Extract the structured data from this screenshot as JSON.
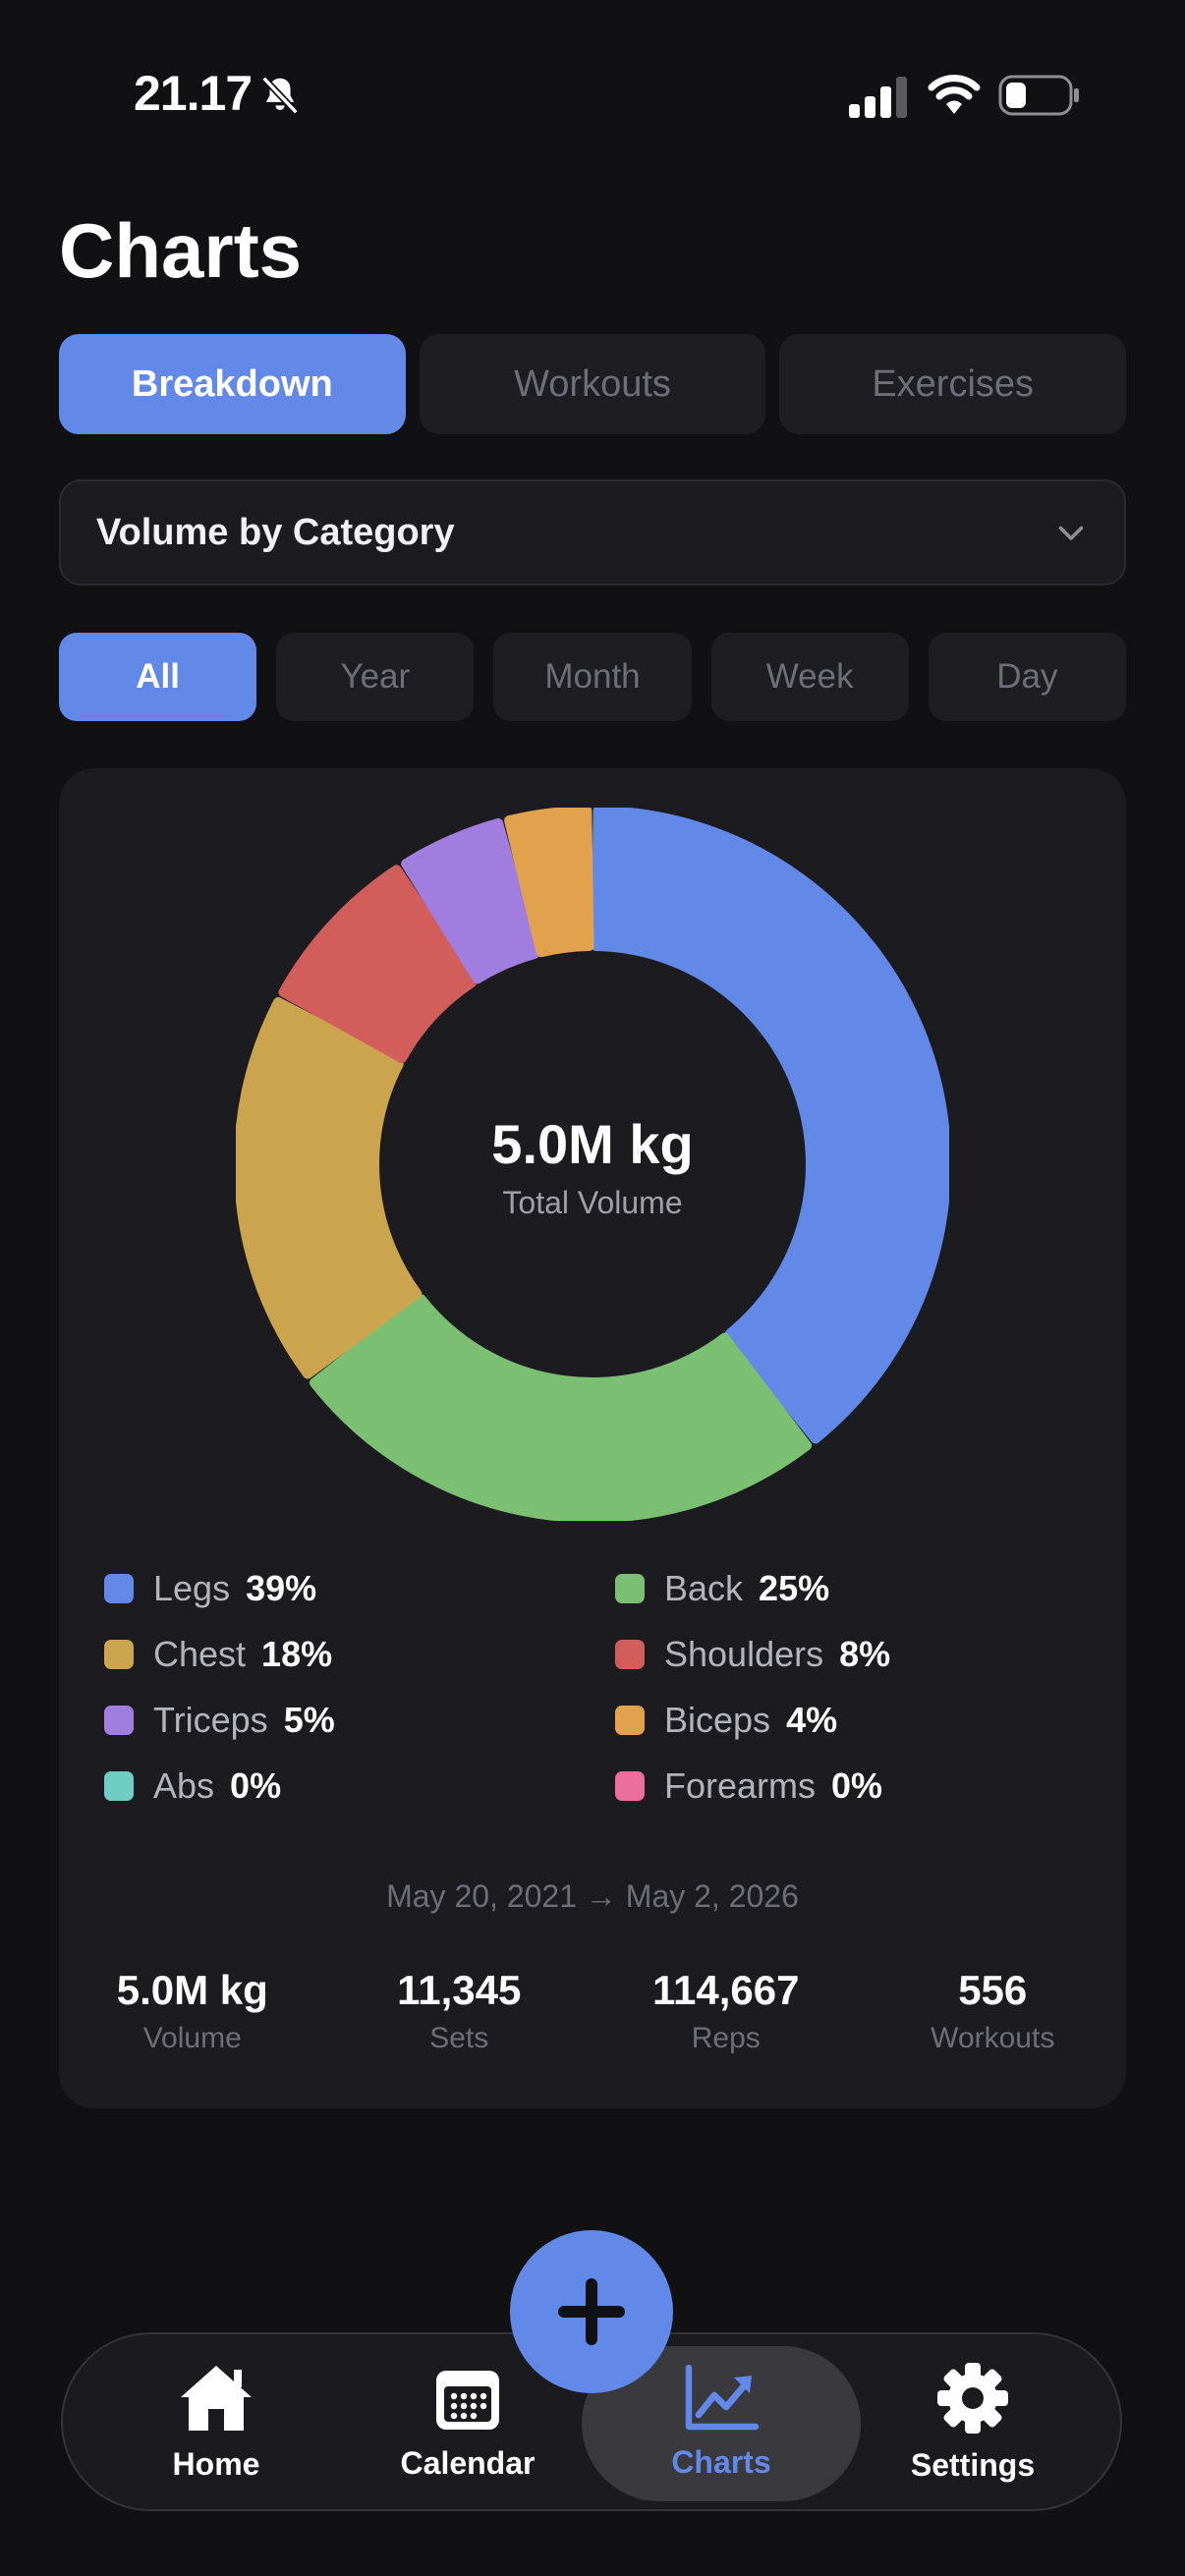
{
  "status_bar": {
    "time": "21.17"
  },
  "page_title": "Charts",
  "tabs": [
    {
      "label": "Breakdown",
      "active": true
    },
    {
      "label": "Workouts",
      "active": false
    },
    {
      "label": "Exercises",
      "active": false
    }
  ],
  "dropdown": {
    "label": "Volume by Category"
  },
  "periods": [
    {
      "label": "All",
      "active": true
    },
    {
      "label": "Year",
      "active": false
    },
    {
      "label": "Month",
      "active": false
    },
    {
      "label": "Week",
      "active": false
    },
    {
      "label": "Day",
      "active": false
    }
  ],
  "chart_data": {
    "type": "pie",
    "donut": true,
    "center_value": "5.0M kg",
    "center_label": "Total Volume",
    "categories": [
      "Legs",
      "Back",
      "Chest",
      "Shoulders",
      "Triceps",
      "Biceps",
      "Abs",
      "Forearms"
    ],
    "values": [
      39,
      25,
      18,
      8,
      5,
      4,
      0,
      0
    ],
    "colors": [
      "#6289e8",
      "#7bc072",
      "#cda44e",
      "#d25e5b",
      "#a07ddf",
      "#e2a24d",
      "#6fcdc4",
      "#ea6f9d"
    ],
    "legend": [
      {
        "name": "Legs",
        "pct": "39%"
      },
      {
        "name": "Back",
        "pct": "25%"
      },
      {
        "name": "Chest",
        "pct": "18%"
      },
      {
        "name": "Shoulders",
        "pct": "8%"
      },
      {
        "name": "Triceps",
        "pct": "5%"
      },
      {
        "name": "Biceps",
        "pct": "4%"
      },
      {
        "name": "Abs",
        "pct": "0%"
      },
      {
        "name": "Forearms",
        "pct": "0%"
      }
    ]
  },
  "date_range": "May 20, 2021 → May 2, 2026",
  "stats": [
    {
      "value": "5.0M kg",
      "label": "Volume"
    },
    {
      "value": "11,345",
      "label": "Sets"
    },
    {
      "value": "114,667",
      "label": "Reps"
    },
    {
      "value": "556",
      "label": "Workouts"
    }
  ],
  "nav": [
    {
      "label": "Home",
      "icon": "home-icon",
      "active": false
    },
    {
      "label": "Calendar",
      "icon": "calendar-icon",
      "active": false
    },
    {
      "label": "Charts",
      "icon": "chart-icon",
      "active": true
    },
    {
      "label": "Settings",
      "icon": "gear-icon",
      "active": false
    }
  ],
  "fab": {
    "icon": "plus-icon"
  },
  "colors": {
    "accent": "#6289e8",
    "background": "#111114",
    "card": "#1c1c20"
  }
}
